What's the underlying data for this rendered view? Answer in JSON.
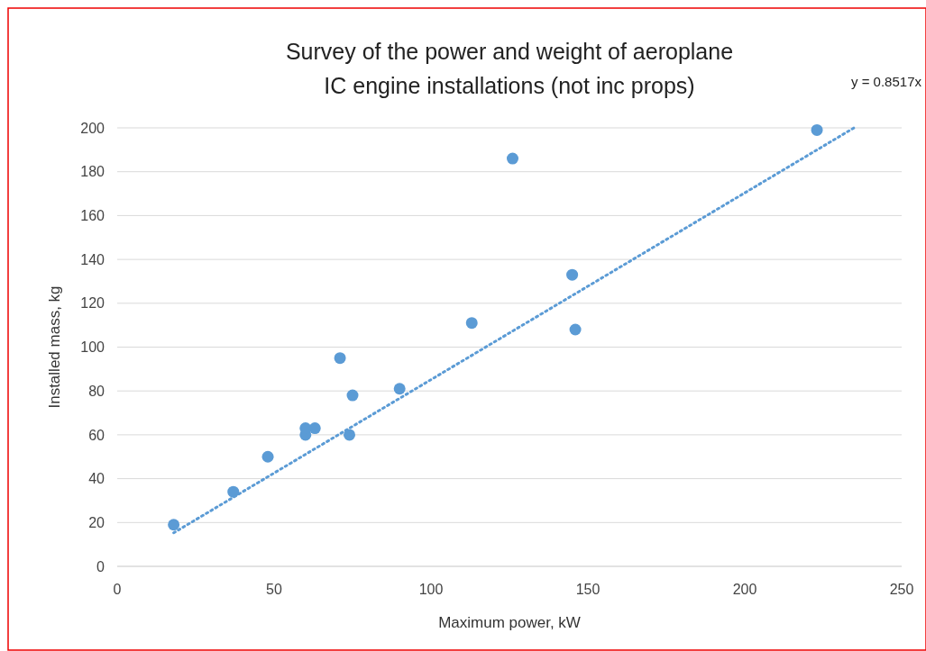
{
  "chart_data": {
    "type": "scatter",
    "title": "Survey of the power and weight of aeroplane IC engine installations (not inc props)",
    "xlabel": "Maximum power, kW",
    "ylabel": "Installed mass, kg",
    "annotations": [
      "y = 0.8517x"
    ],
    "x": [
      18,
      37,
      48,
      60,
      60,
      63,
      71,
      74,
      75,
      90,
      113,
      126,
      145,
      146,
      223
    ],
    "series": [
      {
        "color": "#5b9bd5",
        "values": [
          19,
          34,
          50,
          60,
          63,
          63,
          95,
          60,
          78,
          81,
          111,
          186,
          133,
          108,
          199
        ],
        "marker": "circle"
      },
      {
        "type": "line",
        "color": "#5b9bd5",
        "x": [
          18,
          234.8
        ],
        "values": [
          15.3,
          200
        ],
        "line_style": "dotted"
      }
    ],
    "xlim": [
      0,
      250
    ],
    "xticks": [
      0,
      50,
      100,
      150,
      200,
      250
    ],
    "ylim": [
      0,
      200
    ],
    "yticks": [
      0,
      20,
      40,
      60,
      80,
      100,
      120,
      140,
      160,
      180,
      200
    ],
    "grid": "y"
  }
}
